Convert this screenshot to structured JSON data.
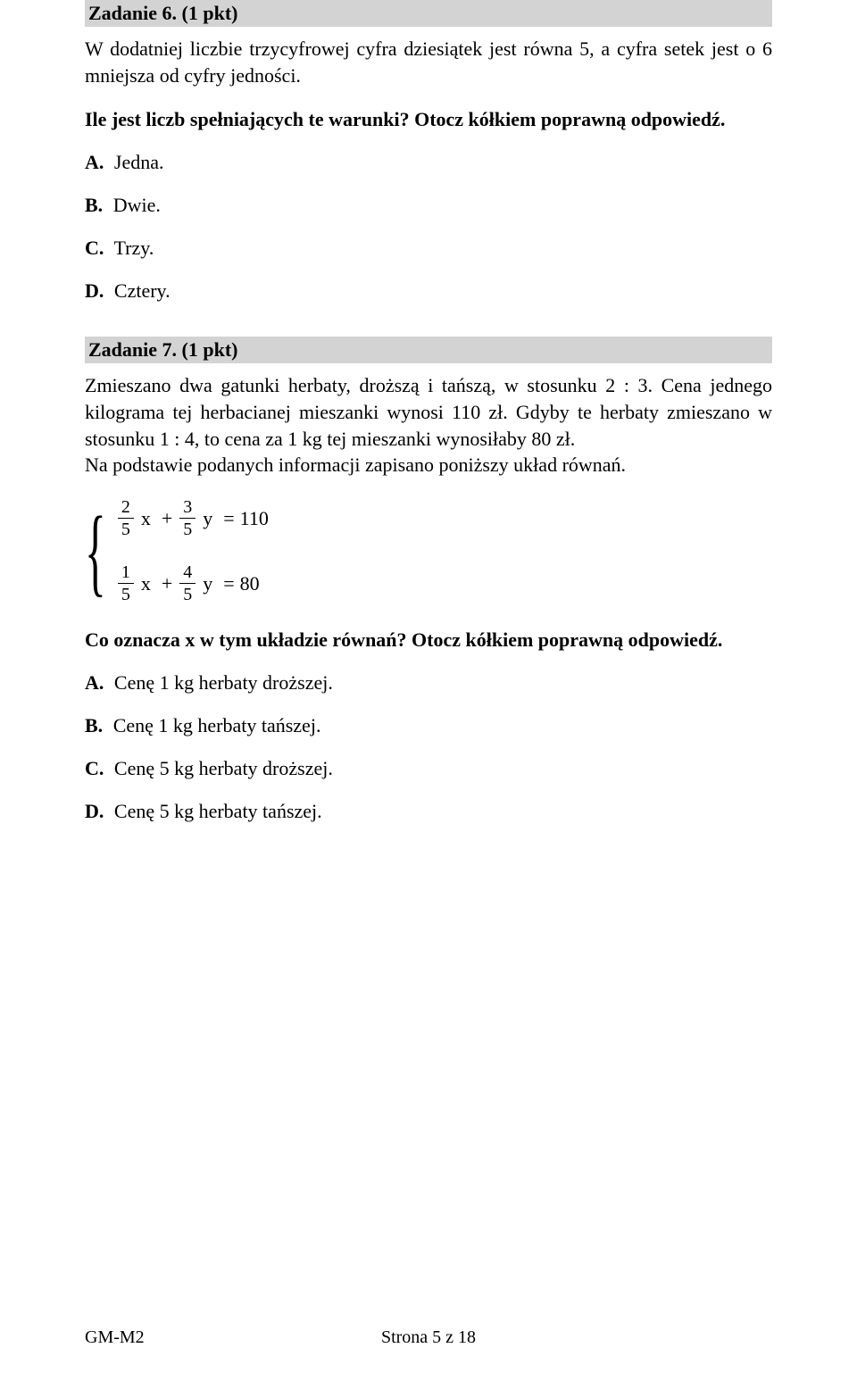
{
  "task6": {
    "header": "Zadanie 6. (1 pkt)",
    "body": "W dodatniej liczbie trzycyfrowej cyfra dziesiątek jest równa 5, a cyfra setek jest o 6 mniejsza od cyfry jedności.",
    "prompt": "Ile jest liczb spełniających te warunki? Otocz kółkiem poprawną odpowiedź.",
    "options": {
      "a": {
        "label": "A.",
        "text": "Jedna."
      },
      "b": {
        "label": "B.",
        "text": "Dwie."
      },
      "c": {
        "label": "C.",
        "text": "Trzy."
      },
      "d": {
        "label": "D.",
        "text": "Cztery."
      }
    }
  },
  "task7": {
    "header": "Zadanie 7. (1 pkt)",
    "body": "Zmieszano dwa gatunki herbaty, droższą i tańszą, w stosunku 2 : 3. Cena jednego kilograma tej herbacianej mieszanki wynosi 110 zł. Gdyby te herbaty zmieszano w stosunku 1 : 4, to cena za 1 kg tej mieszanki wynosiłaby 80 zł.",
    "body2": "Na podstawie podanych informacji zapisano poniższy układ równań.",
    "eq1": {
      "a_num": "2",
      "a_den": "5",
      "b_num": "3",
      "b_den": "5",
      "rhs": "110"
    },
    "eq2": {
      "a_num": "1",
      "a_den": "5",
      "b_num": "4",
      "b_den": "5",
      "rhs": "80"
    },
    "prompt": "Co oznacza x w tym układzie równań? Otocz kółkiem poprawną odpowiedź.",
    "options": {
      "a": {
        "label": "A.",
        "text": "Cenę 1 kg herbaty droższej."
      },
      "b": {
        "label": "B.",
        "text": "Cenę 1 kg herbaty tańszej."
      },
      "c": {
        "label": "C.",
        "text": "Cenę 5 kg herbaty droższej."
      },
      "d": {
        "label": "D.",
        "text": "Cenę 5 kg herbaty tańszej."
      }
    }
  },
  "footer": {
    "left": "GM-M2",
    "center": "Strona 5 z 18"
  }
}
